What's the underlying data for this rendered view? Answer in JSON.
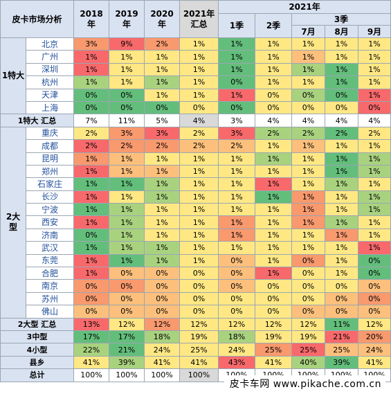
{
  "header": {
    "title": "皮卡市场分析",
    "year_2018": "2018\n年",
    "year_2019": "2019\n年",
    "year_2020": "2020\n年",
    "year_2021_summary": "2021年\n汇总",
    "year_2021": "2021年",
    "q1": "1季",
    "q2": "2季",
    "q3": "3季",
    "jul": "7月",
    "aug": "8月",
    "sep": "9月"
  },
  "colors": {
    "deep_green": "#63be7b",
    "light_green": "#a9d27f",
    "yellow": "#ffe884",
    "light_orange": "#fdc07c",
    "orange": "#f8996e",
    "red": "#f8696b",
    "gray": "#d9d9d9",
    "header_blue": "#d9e2f1"
  },
  "chart_data": {
    "type": "table",
    "columns": [
      "2018年",
      "2019年",
      "2020年",
      "2021年汇总",
      "1季",
      "2季",
      "7月",
      "8月",
      "9月"
    ],
    "groups": [
      {
        "region": "1特大",
        "rows": [
          {
            "city": "北京",
            "values": [
              "3%",
              "9%",
              "2%",
              "1%",
              "1%",
              "1%",
              "1%",
              "1%",
              "1%"
            ],
            "colors": [
              "o",
              "r",
              "o",
              "y",
              "g",
              "y",
              "y",
              "y",
              "y"
            ]
          },
          {
            "city": "广州",
            "values": [
              "1%",
              "1%",
              "1%",
              "1%",
              "1%",
              "1%",
              "1%",
              "1%",
              "1%"
            ],
            "colors": [
              "r",
              "y",
              "y",
              "y",
              "g",
              "y",
              "lo",
              "y",
              "y"
            ]
          },
          {
            "city": "深圳",
            "values": [
              "1%",
              "1%",
              "1%",
              "1%",
              "1%",
              "1%",
              "1%",
              "1%",
              "1%"
            ],
            "colors": [
              "r",
              "y",
              "y",
              "y",
              "g",
              "y",
              "lg",
              "g",
              "y"
            ]
          },
          {
            "city": "杭州",
            "values": [
              "1%",
              "1%",
              "1%",
              "1%",
              "0%",
              "1%",
              "1%",
              "1%",
              "1%"
            ],
            "colors": [
              "lg",
              "y",
              "lg",
              "y",
              "g",
              "y",
              "y",
              "g",
              "y"
            ]
          },
          {
            "city": "天津",
            "values": [
              "0%",
              "0%",
              "1%",
              "1%",
              "1%",
              "0%",
              "0%",
              "0%",
              "1%"
            ],
            "colors": [
              "g",
              "g",
              "y",
              "y",
              "r",
              "y",
              "lg",
              "g",
              "r"
            ]
          },
          {
            "city": "上海",
            "values": [
              "0%",
              "0%",
              "0%",
              "0%",
              "0%",
              "0%",
              "0%",
              "0%",
              "0%"
            ],
            "colors": [
              "g",
              "g",
              "g",
              "y",
              "g",
              "y",
              "y",
              "y",
              "r"
            ]
          }
        ],
        "summary": {
          "label": "1特大 汇总",
          "values": [
            "7%",
            "11%",
            "5%",
            "4%",
            "3%",
            "4%",
            "4%",
            "4%",
            "4%"
          ]
        }
      },
      {
        "region": "2大\n型",
        "rows": [
          {
            "city": "重庆",
            "values": [
              "2%",
              "3%",
              "3%",
              "2%",
              "3%",
              "2%",
              "2%",
              "2%",
              "2%"
            ],
            "colors": [
              "y",
              "o",
              "r",
              "y",
              "r",
              "lg",
              "lg",
              "g",
              "y"
            ]
          },
          {
            "city": "成都",
            "values": [
              "2%",
              "2%",
              "2%",
              "2%",
              "2%",
              "1%",
              "1%",
              "1%",
              "1%"
            ],
            "colors": [
              "r",
              "o",
              "o",
              "lo",
              "lo",
              "y",
              "lo",
              "y",
              "y"
            ]
          },
          {
            "city": "昆明",
            "values": [
              "1%",
              "1%",
              "1%",
              "1%",
              "1%",
              "1%",
              "1%",
              "1%",
              "1%"
            ],
            "colors": [
              "o",
              "lo",
              "y",
              "y",
              "y",
              "lg",
              "y",
              "g",
              "lg"
            ]
          },
          {
            "city": "郑州",
            "values": [
              "1%",
              "1%",
              "1%",
              "1%",
              "1%",
              "1%",
              "1%",
              "1%",
              "1%"
            ],
            "colors": [
              "r",
              "lo",
              "lo",
              "y",
              "y",
              "y",
              "y",
              "g",
              "lg"
            ]
          },
          {
            "city": "石家庄",
            "values": [
              "1%",
              "1%",
              "1%",
              "1%",
              "1%",
              "1%",
              "1%",
              "1%",
              "1%"
            ],
            "colors": [
              "g",
              "g",
              "lg",
              "y",
              "y",
              "r",
              "y",
              "lg",
              "y"
            ]
          },
          {
            "city": "长沙",
            "values": [
              "1%",
              "1%",
              "1%",
              "1%",
              "1%",
              "1%",
              "1%",
              "1%",
              "1%"
            ],
            "colors": [
              "r",
              "y",
              "lg",
              "y",
              "y",
              "g",
              "o",
              "y",
              "lg"
            ]
          },
          {
            "city": "宁波",
            "values": [
              "1%",
              "1%",
              "1%",
              "1%",
              "1%",
              "1%",
              "1%",
              "1%",
              "1%"
            ],
            "colors": [
              "g",
              "lg",
              "y",
              "y",
              "y",
              "y",
              "o",
              "y",
              "lg"
            ]
          },
          {
            "city": "西安",
            "values": [
              "1%",
              "1%",
              "1%",
              "1%",
              "1%",
              "1%",
              "1%",
              "1%",
              "1%"
            ],
            "colors": [
              "r",
              "lg",
              "y",
              "y",
              "o",
              "y",
              "o",
              "lg",
              "y"
            ]
          },
          {
            "city": "济南",
            "values": [
              "0%",
              "1%",
              "1%",
              "1%",
              "1%",
              "1%",
              "1%",
              "1%",
              "1%"
            ],
            "colors": [
              "g",
              "lg",
              "y",
              "y",
              "o",
              "y",
              "y",
              "o",
              "y"
            ]
          },
          {
            "city": "武汉",
            "values": [
              "1%",
              "1%",
              "1%",
              "1%",
              "1%",
              "1%",
              "1%",
              "1%",
              "1%"
            ],
            "colors": [
              "g",
              "lg",
              "lg",
              "y",
              "y",
              "y",
              "y",
              "y",
              "r"
            ]
          },
          {
            "city": "东莞",
            "values": [
              "1%",
              "1%",
              "1%",
              "1%",
              "0%",
              "1%",
              "0%",
              "1%",
              "0%"
            ],
            "colors": [
              "r",
              "g",
              "lg",
              "y",
              "lo",
              "y",
              "o",
              "y",
              "g"
            ]
          },
          {
            "city": "合肥",
            "values": [
              "1%",
              "0%",
              "0%",
              "0%",
              "0%",
              "1%",
              "0%",
              "1%",
              "0%"
            ],
            "colors": [
              "r",
              "lo",
              "lo",
              "y",
              "lo",
              "r",
              "y",
              "y",
              "g"
            ]
          },
          {
            "city": "南京",
            "values": [
              "0%",
              "0%",
              "0%",
              "0%",
              "0%",
              "0%",
              "0%",
              "0%",
              "0%"
            ],
            "colors": [
              "o",
              "o",
              "lo",
              "y",
              "lo",
              "y",
              "y",
              "y",
              "lo"
            ]
          },
          {
            "city": "苏州",
            "values": [
              "0%",
              "0%",
              "0%",
              "0%",
              "0%",
              "0%",
              "0%",
              "0%",
              "0%"
            ],
            "colors": [
              "o",
              "lo",
              "lo",
              "y",
              "y",
              "y",
              "y",
              "lo",
              "o"
            ]
          },
          {
            "city": "佛山",
            "values": [
              "0%",
              "0%",
              "0%",
              "0%",
              "0%",
              "0%",
              "0%",
              "0%",
              "0%"
            ],
            "colors": [
              "lo",
              "lo",
              "lo",
              "y",
              "y",
              "y",
              "lo",
              "lo",
              "lo"
            ]
          }
        ],
        "summary": {
          "label": "2大型 汇总",
          "values": [
            "13%",
            "12%",
            "12%",
            "12%",
            "12%",
            "12%",
            "12%",
            "11%",
            "12%"
          ],
          "colors": [
            "r",
            "y",
            "o",
            "y",
            "y",
            "y",
            "y",
            "g",
            "y"
          ]
        }
      }
    ],
    "other_rows": [
      {
        "label": "3中型",
        "values": [
          "17%",
          "17%",
          "18%",
          "19%",
          "18%",
          "19%",
          "19%",
          "21%",
          "20%"
        ],
        "colors": [
          "g",
          "g",
          "lg",
          "y",
          "lg",
          "y",
          "y",
          "r",
          "o"
        ]
      },
      {
        "label": "4小型",
        "values": [
          "22%",
          "21%",
          "24%",
          "25%",
          "24%",
          "25%",
          "25%",
          "25%",
          "24%"
        ],
        "colors": [
          "lg",
          "g",
          "y",
          "y",
          "y",
          "o",
          "r",
          "lo",
          "lo"
        ]
      },
      {
        "label": "县乡",
        "values": [
          "41%",
          "39%",
          "41%",
          "41%",
          "43%",
          "41%",
          "40%",
          "39%",
          "41%"
        ],
        "colors": [
          "y",
          "lg",
          "y",
          "y",
          "r",
          "y",
          "lg",
          "g",
          "y"
        ]
      },
      {
        "label": "总计",
        "values": [
          "100%",
          "100%",
          "100%",
          "100%",
          "100%",
          "100%",
          "100%",
          "100%",
          "100%"
        ]
      }
    ]
  },
  "watermark": "皮卡车网  www.pikache.com.cn"
}
